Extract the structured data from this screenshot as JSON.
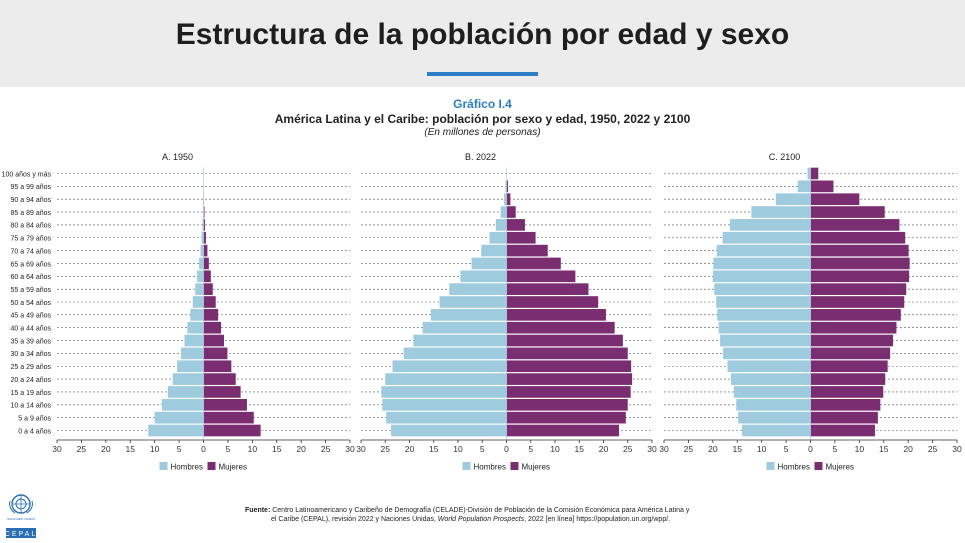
{
  "page": {
    "title": "Estructura de la población por edad y sexo",
    "accent_color": "#2a7ec5"
  },
  "figure": {
    "label": "Gráfico I.4",
    "title": "América Latina y el Caribe: población por sexo y edad, 1950, 2022 y 2100",
    "subtitle": "(En millones de personas)"
  },
  "legend": {
    "hombres": "Hombres",
    "mujeres": "Mujeres"
  },
  "colors": {
    "hombres": "#9ecbdd",
    "mujeres": "#7b2d71"
  },
  "source": {
    "label": "Fuente:",
    "text_line1": "Centro Latinoamericano y Caribeño de Demografía (CELADE)-División de Población de la Comisión Económica para América Latina y",
    "text_line2a": "el Caribe (CEPAL), revisión 2022 y Naciones Unidas, ",
    "text_line2_italic": "World Population Prospects",
    "text_line2b": ", 2022 [en línea] https://population.un.org/wpp/."
  },
  "logos": {
    "un_text": "NACIONES UNIDAS",
    "cepal_text": "CEPAL"
  },
  "chart_data": [
    {
      "type": "bar",
      "orientation": "horizontal-population-pyramid",
      "title": "A. 1950",
      "categories": [
        "100 años y más",
        "95 a 99 años",
        "90 a 94 años",
        "85 a 89 años",
        "80 a 84 años",
        "75 a 79 años",
        "70 a 74 años",
        "65 a 69 años",
        "60 a 64 años",
        "55 a 59 años",
        "50 a 54 años",
        "45 a 49 años",
        "40 a 44 años",
        "35 a 39 años",
        "30 a 34 años",
        "25 a 29 años",
        "20 a 24 años",
        "15 a 19 años",
        "10 a 14 años",
        "5 a 9 años",
        "0 a 4 años"
      ],
      "series": [
        {
          "name": "Hombres",
          "values": [
            0,
            0,
            0,
            0.1,
            0.2,
            0.4,
            0.6,
            0.9,
            1.3,
            1.7,
            2.2,
            2.7,
            3.3,
            3.9,
            4.6,
            5.4,
            6.3,
            7.3,
            8.5,
            10.0,
            11.3
          ]
        },
        {
          "name": "Mujeres",
          "values": [
            0,
            0,
            0.1,
            0.2,
            0.3,
            0.5,
            0.8,
            1.1,
            1.5,
            1.9,
            2.5,
            3.0,
            3.6,
            4.2,
            4.9,
            5.7,
            6.6,
            7.6,
            8.9,
            10.3,
            11.7
          ]
        }
      ],
      "xlim": [
        -30,
        30
      ],
      "xticks": [
        "30",
        "25",
        "20",
        "15",
        "10",
        "5",
        "0",
        "5",
        "10",
        "15",
        "20",
        "25",
        "30"
      ]
    },
    {
      "type": "bar",
      "orientation": "horizontal-population-pyramid",
      "title": "B. 2022",
      "categories": [
        "100 años y más",
        "95 a 99 años",
        "90 a 94 años",
        "85 a 89 años",
        "80 a 84 años",
        "75 a 79 años",
        "70 a 74 años",
        "65 a 69 años",
        "60 a 64 años",
        "55 a 59 años",
        "50 a 54 años",
        "45 a 49 años",
        "40 a 44 años",
        "35 a 39 años",
        "30 a 34 años",
        "25 a 29 años",
        "20 a 24 años",
        "15 a 19 años",
        "10 a 14 años",
        "5 a 9 años",
        "0 a 4 años"
      ],
      "series": [
        {
          "name": "Hombres",
          "values": [
            0,
            0.2,
            0.5,
            1.2,
            2.2,
            3.5,
            5.2,
            7.2,
            9.5,
            11.8,
            13.8,
            15.6,
            17.3,
            19.2,
            21.2,
            23.5,
            25.0,
            25.8,
            25.6,
            24.8,
            23.8
          ]
        },
        {
          "name": "Mujeres",
          "values": [
            0,
            0.3,
            0.8,
            1.9,
            3.8,
            6.0,
            8.5,
            11.2,
            14.2,
            16.9,
            18.9,
            20.5,
            22.3,
            24.0,
            25.0,
            25.7,
            25.9,
            25.6,
            25.0,
            24.6,
            23.2
          ]
        }
      ],
      "xlim": [
        -30,
        30
      ],
      "xticks": [
        "30",
        "25",
        "20",
        "15",
        "10",
        "5",
        "0",
        "5",
        "10",
        "15",
        "20",
        "25",
        "30"
      ]
    },
    {
      "type": "bar",
      "orientation": "horizontal-population-pyramid",
      "title": "C. 2100",
      "categories": [
        "100 años y más",
        "95 a 99 años",
        "90 a 94 años",
        "85 a 89 años",
        "80 a 84 años",
        "75 a 79 años",
        "70 a 74 años",
        "65 a 69 años",
        "60 a 64 años",
        "55 a 59 años",
        "50 a 54 años",
        "45 a 49 años",
        "40 a 44 años",
        "35 a 39 años",
        "30 a 34 años",
        "25 a 29 años",
        "20 a 24 años",
        "15 a 19 años",
        "10 a 14 años",
        "5 a 9 años",
        "0 a 4 años"
      ],
      "series": [
        {
          "name": "Hombres",
          "values": [
            0.6,
            2.6,
            7.1,
            12.1,
            16.5,
            18.0,
            19.2,
            19.9,
            20.0,
            19.7,
            19.3,
            19.1,
            18.8,
            18.5,
            17.9,
            17.0,
            16.3,
            15.7,
            15.2,
            14.8,
            14.0
          ]
        },
        {
          "name": "Mujeres",
          "values": [
            1.6,
            4.7,
            10.0,
            15.2,
            18.2,
            19.4,
            20.1,
            20.3,
            20.2,
            19.6,
            19.2,
            18.5,
            17.6,
            16.9,
            16.3,
            15.8,
            15.3,
            14.9,
            14.3,
            13.8,
            13.2
          ]
        }
      ],
      "xlim": [
        -30,
        30
      ],
      "xticks": [
        "30",
        "25",
        "20",
        "15",
        "10",
        "5",
        "0",
        "5",
        "10",
        "15",
        "20",
        "25",
        "30"
      ]
    }
  ]
}
